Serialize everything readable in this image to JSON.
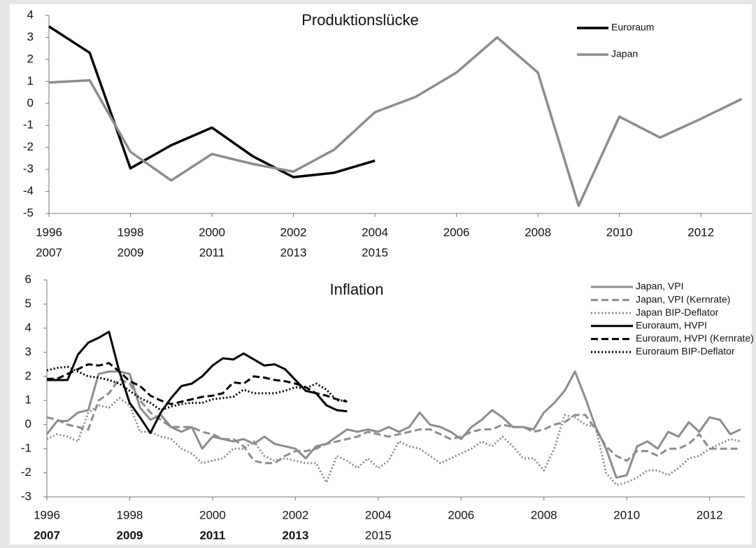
{
  "chart_data": [
    {
      "type": "line",
      "title": "Produktionslücke",
      "x": [
        1996,
        1997,
        1998,
        1999,
        2000,
        2001,
        2002,
        2003,
        2004,
        2005,
        2006,
        2007,
        2008,
        2009,
        2010,
        2011,
        2012,
        2013
      ],
      "series": [
        {
          "name": "Euroraum",
          "color": "#000000",
          "dash": "solid",
          "values": [
            3.5,
            2.3,
            -2.95,
            -1.9,
            -1.1,
            -2.4,
            -3.35,
            -3.15,
            -2.6,
            null,
            null,
            null,
            null,
            null,
            null,
            null,
            null,
            null
          ]
        },
        {
          "name": "Japan",
          "color": "#8c8c8c",
          "dash": "solid",
          "values": [
            0.95,
            1.05,
            -2.2,
            -3.5,
            -2.3,
            -2.75,
            -3.1,
            -2.1,
            -0.4,
            0.3,
            1.4,
            3.0,
            1.4,
            -4.65,
            -0.6,
            -1.55,
            -0.7,
            0.2
          ]
        }
      ],
      "xlim": [
        1996,
        2013.25
      ],
      "xticks": [
        1996,
        1998,
        2000,
        2002,
        2004,
        2006,
        2008,
        2010,
        2012
      ],
      "secondary_xtick_labels": [
        "2007",
        "2009",
        "2011",
        "2013",
        "2015"
      ],
      "secondary_xtick_bold": [
        false,
        false,
        false,
        false,
        false
      ],
      "ylim": [
        -5,
        4
      ],
      "yticks": [
        -5,
        -4,
        -3,
        -2,
        -1,
        0,
        1,
        2,
        3,
        4
      ],
      "grid": false,
      "legend": "upper right"
    },
    {
      "type": "line",
      "title": "Inflation",
      "x": [
        1996,
        1996.25,
        1996.5,
        1996.75,
        1997,
        1997.25,
        1997.5,
        1997.75,
        1998,
        1998.25,
        1998.5,
        1998.75,
        1999,
        1999.25,
        1999.5,
        1999.75,
        2000,
        2000.25,
        2000.5,
        2000.75,
        2001,
        2001.25,
        2001.5,
        2001.75,
        2002,
        2002.25,
        2002.5,
        2002.75,
        2003,
        2003.25,
        2003.5,
        2003.75,
        2004,
        2004.25,
        2004.5,
        2004.75,
        2005,
        2005.25,
        2005.5,
        2005.75,
        2006,
        2006.25,
        2006.5,
        2006.75,
        2007,
        2007.25,
        2007.5,
        2007.75,
        2008,
        2008.25,
        2008.5,
        2008.75,
        2009,
        2009.25,
        2009.5,
        2009.75,
        2010,
        2010.25,
        2010.5,
        2010.75,
        2011,
        2011.25,
        2011.5,
        2011.75,
        2012,
        2012.25,
        2012.5,
        2012.75
      ],
      "series": [
        {
          "name": "Japan, VPI",
          "color": "#8c8c8c",
          "dash": "solid",
          "values": [
            -0.4,
            0.15,
            0.15,
            0.5,
            0.6,
            2.1,
            2.2,
            2.2,
            2.1,
            0.7,
            0.2,
            0.4,
            -0.1,
            -0.3,
            -0.1,
            -1.0,
            -0.5,
            -0.6,
            -0.7,
            -0.6,
            -0.8,
            -0.5,
            -0.8,
            -0.9,
            -1.0,
            -1.4,
            -0.9,
            -0.8,
            -0.5,
            -0.2,
            -0.3,
            -0.2,
            -0.3,
            -0.1,
            -0.3,
            -0.1,
            0.5,
            0.0,
            -0.1,
            -0.3,
            -0.6,
            -0.1,
            0.2,
            0.6,
            0.3,
            -0.1,
            -0.1,
            -0.2,
            0.5,
            0.9,
            1.4,
            2.2,
            1.1,
            -0.1,
            -1.0,
            -2.2,
            -2.1,
            -0.9,
            -0.7,
            -1.0,
            -0.3,
            -0.5,
            0.1,
            -0.3,
            0.3,
            0.2,
            -0.4,
            -0.2
          ]
        },
        {
          "name": "Japan, VPI (Kernrate)",
          "color": "#8c8c8c",
          "dash": "dashed",
          "values": [
            0.3,
            0.2,
            0.0,
            -0.1,
            -0.2,
            1.0,
            1.3,
            1.9,
            1.7,
            1.0,
            0.5,
            0.2,
            -0.1,
            -0.1,
            -0.1,
            -0.3,
            -0.4,
            -0.6,
            -0.6,
            -0.9,
            -1.5,
            -1.6,
            -1.6,
            -1.3,
            -1.1,
            -1.1,
            -1.0,
            -0.8,
            -0.7,
            -0.6,
            -0.5,
            -0.3,
            -0.4,
            -0.5,
            -0.4,
            -0.3,
            -0.2,
            -0.2,
            -0.4,
            -0.6,
            -0.5,
            -0.3,
            -0.2,
            -0.2,
            0.0,
            -0.1,
            -0.1,
            -0.3,
            -0.2,
            0.0,
            0.1,
            0.4,
            0.4,
            -0.2,
            -0.9,
            -1.3,
            -1.5,
            -1.1,
            -1.1,
            -1.3,
            -1.0,
            -1.0,
            -0.8,
            -0.4,
            -1.0,
            -1.0,
            -1.0,
            -1.0
          ]
        },
        {
          "name": "Japan BIP-Deflator",
          "color": "#8c8c8c",
          "dash": "dotted",
          "values": [
            -0.6,
            -0.4,
            -0.5,
            -0.7,
            0.5,
            0.8,
            0.7,
            1.1,
            0.8,
            -0.3,
            -0.3,
            -0.5,
            -0.6,
            -1.0,
            -1.2,
            -1.6,
            -1.5,
            -1.4,
            -1.0,
            -1.0,
            -0.7,
            -1.3,
            -1.5,
            -1.4,
            -1.5,
            -1.6,
            -1.6,
            -2.4,
            -1.3,
            -1.5,
            -1.8,
            -1.4,
            -1.8,
            -1.5,
            -0.7,
            -0.9,
            -1.0,
            -1.3,
            -1.6,
            -1.4,
            -1.2,
            -1.0,
            -0.7,
            -0.9,
            -0.5,
            -0.9,
            -1.4,
            -1.4,
            -1.9,
            -1.0,
            0.4,
            0.3,
            0.0,
            -0.1,
            -2.0,
            -2.5,
            -2.4,
            -2.2,
            -1.9,
            -1.9,
            -2.1,
            -1.8,
            -1.4,
            -1.3,
            -1.0,
            -0.8,
            -0.6,
            -0.7
          ]
        },
        {
          "name": "Euroraum, HVPI",
          "color": "#000000",
          "dash": "solid",
          "values": [
            1.85,
            1.85,
            1.85,
            2.9,
            3.4,
            3.6,
            3.85,
            2.2,
            0.9,
            0.3,
            -0.35,
            0.5,
            1.1,
            1.6,
            1.7,
            2.0,
            2.45,
            2.75,
            2.7,
            2.95,
            2.7,
            2.45,
            2.5,
            2.3,
            1.85,
            1.4,
            1.3,
            0.8,
            0.6,
            0.55,
            null,
            null,
            null,
            null,
            null,
            null,
            null,
            null,
            null,
            null,
            null,
            null,
            null,
            null,
            null,
            null,
            null,
            null,
            null,
            null,
            null,
            null,
            null,
            null,
            null,
            null,
            null,
            null,
            null,
            null,
            null,
            null,
            null,
            null,
            null,
            null,
            null,
            null
          ]
        },
        {
          "name": "Euroraum, HVPI (Kernrate)",
          "color": "#000000",
          "dash": "dashed",
          "values": [
            1.9,
            1.9,
            2.1,
            2.3,
            2.5,
            2.45,
            2.55,
            2.2,
            1.8,
            1.6,
            1.2,
            1.0,
            0.85,
            0.95,
            1.05,
            1.15,
            1.2,
            1.3,
            1.75,
            1.7,
            2.0,
            1.95,
            1.85,
            1.8,
            1.7,
            1.55,
            1.3,
            1.2,
            1.05,
            0.95,
            null,
            null,
            null,
            null,
            null,
            null,
            null,
            null,
            null,
            null,
            null,
            null,
            null,
            null,
            null,
            null,
            null,
            null,
            null,
            null,
            null,
            null,
            null,
            null,
            null,
            null,
            null,
            null,
            null,
            null,
            null,
            null,
            null,
            null,
            null,
            null,
            null,
            null
          ]
        },
        {
          "name": "Euroraum BIP-Deflator",
          "color": "#000000",
          "dash": "dotted",
          "values": [
            2.25,
            2.35,
            2.4,
            2.2,
            2.0,
            1.95,
            1.85,
            1.7,
            1.4,
            1.1,
            0.9,
            0.6,
            0.75,
            0.85,
            0.9,
            0.9,
            1.05,
            1.1,
            1.15,
            1.45,
            1.3,
            1.3,
            1.3,
            1.4,
            1.55,
            1.5,
            1.7,
            1.45,
            1.0,
            1.0,
            null,
            null,
            null,
            null,
            null,
            null,
            null,
            null,
            null,
            null,
            null,
            null,
            null,
            null,
            null,
            null,
            null,
            null,
            null,
            null,
            null,
            null,
            null,
            null,
            null,
            null,
            null,
            null,
            null,
            null,
            null,
            null,
            null,
            null,
            null,
            null,
            null,
            null
          ]
        }
      ],
      "xlim": [
        1996,
        2012.85
      ],
      "xticks": [
        1996,
        1998,
        2000,
        2002,
        2004,
        2006,
        2008,
        2010,
        2012
      ],
      "secondary_xtick_labels": [
        "2007",
        "2009",
        "2011",
        "2013",
        "2015"
      ],
      "secondary_xtick_bold": [
        true,
        true,
        true,
        true,
        false
      ],
      "ylim": [
        -3,
        6
      ],
      "yticks": [
        -3,
        -2,
        -1,
        0,
        1,
        2,
        3,
        4,
        5,
        6
      ],
      "grid": false,
      "legend": "upper right"
    }
  ]
}
